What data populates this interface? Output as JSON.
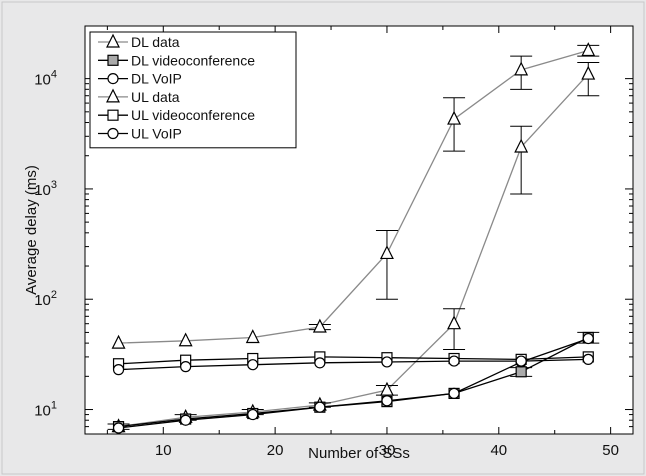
{
  "chart_data": {
    "type": "line",
    "title": "",
    "xlabel": "Number of SSs",
    "ylabel": "Average delay (ms)",
    "xlim": [
      3,
      52
    ],
    "ylim": [
      6,
      30000
    ],
    "yscale": "log",
    "grid": false,
    "legend_position": "top-left",
    "x_ticks": [
      10,
      20,
      30,
      40,
      50
    ],
    "y_ticks": [
      {
        "value": 10,
        "base": "10",
        "exp": "1"
      },
      {
        "value": 100,
        "base": "10",
        "exp": "2"
      },
      {
        "value": 1000,
        "base": "10",
        "exp": "3"
      },
      {
        "value": 10000,
        "base": "10",
        "exp": "4"
      }
    ],
    "x": [
      6,
      12,
      18,
      24,
      30,
      36,
      42,
      48
    ],
    "series": [
      {
        "name": "DL data",
        "color": "#8a8a8a",
        "marker": "triangle",
        "marker_fill": "#ffffff",
        "values": [
          7,
          8.5,
          9.5,
          11,
          15,
          60,
          2400,
          11000
        ],
        "errors": [
          [
            6.6,
            7.4
          ],
          [
            8,
            9
          ],
          [
            9,
            10
          ],
          [
            10.5,
            11.5
          ],
          [
            13.5,
            16.5
          ],
          [
            35,
            82
          ],
          [
            900,
            3700
          ],
          [
            7000,
            14000
          ]
        ]
      },
      {
        "name": "DL videoconference",
        "color": "#000000",
        "marker": "square",
        "marker_fill": "#aaaaaa",
        "values": [
          7,
          8.2,
          9.2,
          10.5,
          11.8,
          14,
          22,
          45
        ],
        "errors": [
          null,
          null,
          null,
          null,
          null,
          null,
          [
            20,
            24
          ],
          [
            40,
            50
          ]
        ]
      },
      {
        "name": "DL VoIP",
        "color": "#000000",
        "marker": "circle",
        "marker_fill": "#ffffff",
        "values": [
          6.8,
          8.0,
          9.0,
          10.5,
          12,
          14,
          27,
          44
        ],
        "errors": null
      },
      {
        "name": "UL data",
        "color": "#8a8a8a",
        "marker": "triangle",
        "marker_fill": "#ffffff",
        "values": [
          40,
          42,
          45,
          56,
          260,
          4300,
          12000,
          18000
        ],
        "errors": [
          null,
          null,
          null,
          [
            53,
            59
          ],
          [
            100,
            420
          ],
          [
            2200,
            6700
          ],
          [
            8000,
            16000
          ],
          [
            16000,
            20000
          ]
        ]
      },
      {
        "name": "UL videoconference",
        "color": "#000000",
        "marker": "square",
        "marker_fill": "#ffffff",
        "values": [
          26,
          28,
          29,
          30,
          29.5,
          29,
          28.5,
          30
        ],
        "errors": null
      },
      {
        "name": "UL VoIP",
        "color": "#000000",
        "marker": "circle",
        "marker_fill": "#ffffff",
        "values": [
          23,
          24.5,
          25.5,
          26.5,
          27,
          27.5,
          27.5,
          28.5
        ],
        "errors": null
      }
    ]
  }
}
